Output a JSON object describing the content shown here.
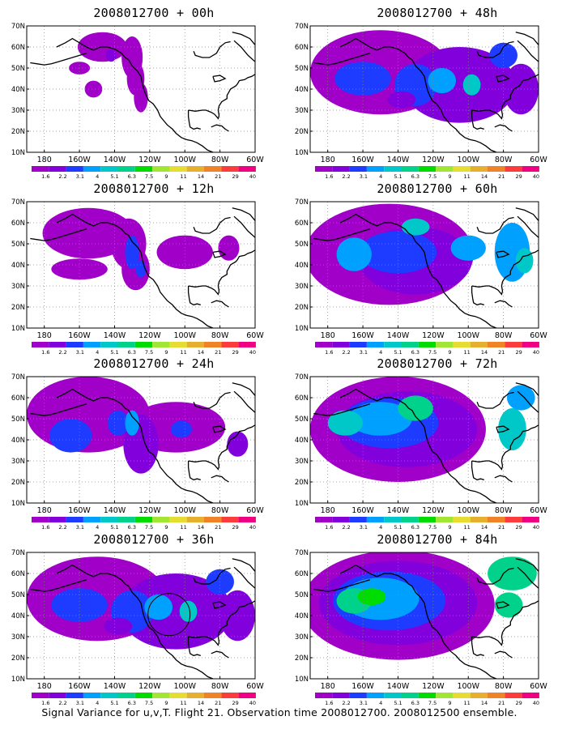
{
  "colorbar": {
    "labels": [
      "1.6",
      "2.2",
      "3.1",
      "4",
      "5.1",
      "6.3",
      "7.5",
      "9",
      "11",
      "14",
      "21",
      "29",
      "40"
    ],
    "colors": [
      "#a000c8",
      "#8200dc",
      "#1e3cff",
      "#00a0ff",
      "#00c8c8",
      "#00d28c",
      "#00dc00",
      "#a0e632",
      "#e6dc32",
      "#e6af2d",
      "#f08228",
      "#fa3c3c",
      "#f00082"
    ]
  },
  "axes": {
    "x_ticks": [
      "180",
      "160W",
      "140W",
      "120W",
      "100W",
      "80W",
      "60W"
    ],
    "y_ticks": [
      "10N",
      "20N",
      "30N",
      "40N",
      "50N",
      "60N",
      "70N"
    ]
  },
  "panels": [
    {
      "title": "2008012700 + 00h",
      "intensity": 1
    },
    {
      "title": "2008012700 + 12h",
      "intensity": 2
    },
    {
      "title": "2008012700 + 24h",
      "intensity": 3
    },
    {
      "title": "2008012700 + 36h",
      "intensity": 4
    },
    {
      "title": "2008012700 + 48h",
      "intensity": 4
    },
    {
      "title": "2008012700 + 60h",
      "intensity": 5
    },
    {
      "title": "2008012700 + 72h",
      "intensity": 6
    },
    {
      "title": "2008012700 + 84h",
      "intensity": 7
    }
  ],
  "caption": "Signal Variance for u,v,T. Flight 21. Observation time 2008012700. 2008012500 ensemble."
}
